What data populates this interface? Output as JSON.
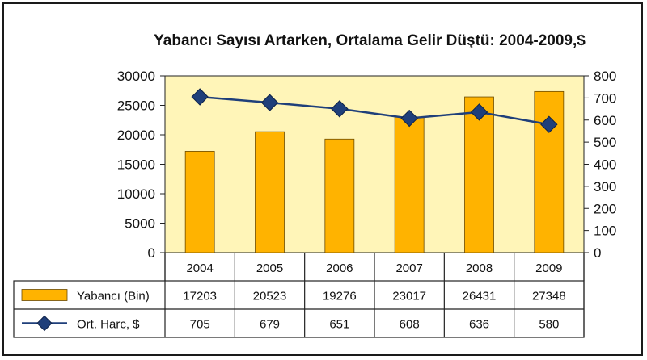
{
  "chart_data": {
    "type": "bar",
    "title": "Yabancı Sayısı Artarken, Ortalama Gelir Düştü: 2004-2009,$",
    "categories": [
      "2004",
      "2005",
      "2006",
      "2007",
      "2008",
      "2009"
    ],
    "series": [
      {
        "name": "Yabancı (Bin)",
        "type": "bar",
        "axis": "left",
        "color": "#FFB300",
        "values": [
          17203,
          20523,
          19276,
          23017,
          26431,
          27348
        ]
      },
      {
        "name": "Ort. Harc, $",
        "type": "line",
        "axis": "right",
        "color": "#1F3F7A",
        "values": [
          705,
          679,
          651,
          608,
          636,
          580
        ]
      }
    ],
    "left_axis": {
      "min": 0,
      "max": 30000,
      "ticks": [
        "0",
        "5000",
        "10000",
        "15000",
        "20000",
        "25000",
        "30000"
      ]
    },
    "right_axis": {
      "min": 0,
      "max": 800,
      "ticks": [
        "0",
        "100",
        "200",
        "300",
        "400",
        "500",
        "600",
        "700",
        "800"
      ]
    },
    "data_table": true,
    "plot_background": "#FFF5B8",
    "grid": false,
    "legend": "data-table"
  }
}
